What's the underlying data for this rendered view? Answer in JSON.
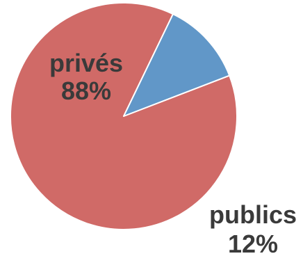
{
  "chart_data": {
    "type": "pie",
    "slices": [
      {
        "label": "privés",
        "percent_label": "88%",
        "value": 88,
        "color": "#d06a67"
      },
      {
        "label": "publics",
        "percent_label": "12%",
        "value": 12,
        "color": "#6197c8"
      }
    ],
    "title": "",
    "legend": "none",
    "start_angle_deg": -21,
    "direction": "clockwise",
    "slice_border_color": "#ffffff"
  }
}
